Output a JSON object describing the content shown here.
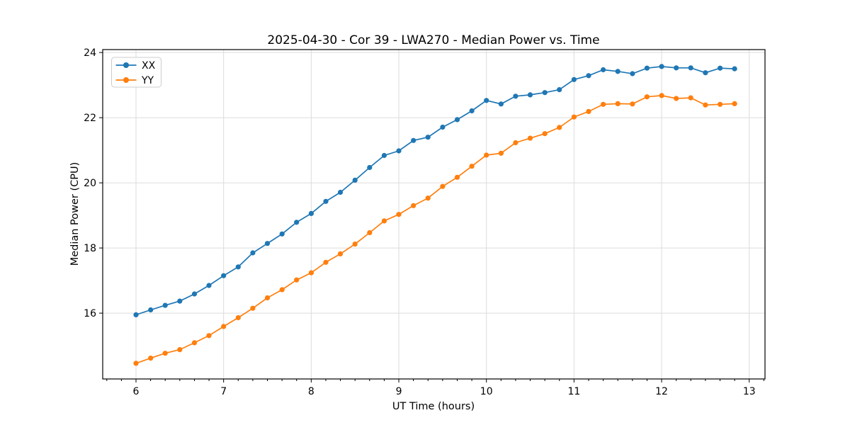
{
  "chart_data": {
    "type": "line",
    "title": "2025-04-30 - Cor 39 - LWA270 - Median Power vs. Time",
    "xlabel": "UT Time (hours)",
    "ylabel": "Median Power (CPU)",
    "xlim": [
      5.62,
      13.18
    ],
    "ylim": [
      13.98,
      24.09
    ],
    "xticks": [
      6,
      7,
      8,
      9,
      10,
      11,
      12,
      13
    ],
    "yticks": [
      16,
      18,
      20,
      22,
      24
    ],
    "x_minor_step": 0.1667,
    "grid": true,
    "legend_position": "upper-left",
    "marker": "circle",
    "x": [
      6,
      6.167,
      6.333,
      6.5,
      6.667,
      6.833,
      7,
      7.167,
      7.333,
      7.5,
      7.667,
      7.833,
      8,
      8.167,
      8.333,
      8.5,
      8.667,
      8.833,
      9,
      9.167,
      9.333,
      9.5,
      9.667,
      9.833,
      10,
      10.167,
      10.333,
      10.5,
      10.667,
      10.833,
      11,
      11.167,
      11.333,
      11.5,
      11.667,
      11.833,
      12,
      12.167,
      12.333,
      12.5,
      12.667,
      12.833
    ],
    "series": [
      {
        "name": "XX",
        "color": "#1f77b4",
        "values": [
          15.95,
          16.1,
          16.24,
          16.37,
          16.59,
          16.85,
          17.15,
          17.42,
          17.85,
          18.14,
          18.43,
          18.79,
          19.06,
          19.43,
          19.71,
          20.08,
          20.47,
          20.84,
          20.98,
          21.3,
          21.4,
          21.71,
          21.94,
          22.21,
          22.53,
          22.42,
          22.66,
          22.7,
          22.77,
          22.86,
          23.17,
          23.29,
          23.47,
          23.42,
          23.35,
          23.52,
          23.57,
          23.53,
          23.53,
          23.38,
          23.52,
          23.5
        ]
      },
      {
        "name": "YY",
        "color": "#ff7f0e",
        "values": [
          14.46,
          14.62,
          14.77,
          14.88,
          15.09,
          15.31,
          15.59,
          15.86,
          16.15,
          16.47,
          16.72,
          17.02,
          17.24,
          17.56,
          17.82,
          18.12,
          18.47,
          18.83,
          19.03,
          19.3,
          19.53,
          19.89,
          20.17,
          20.51,
          20.85,
          20.91,
          21.23,
          21.37,
          21.51,
          21.7,
          22.02,
          22.19,
          22.41,
          22.43,
          22.42,
          22.64,
          22.68,
          22.59,
          22.61,
          22.39,
          22.41,
          22.43
        ]
      }
    ]
  }
}
